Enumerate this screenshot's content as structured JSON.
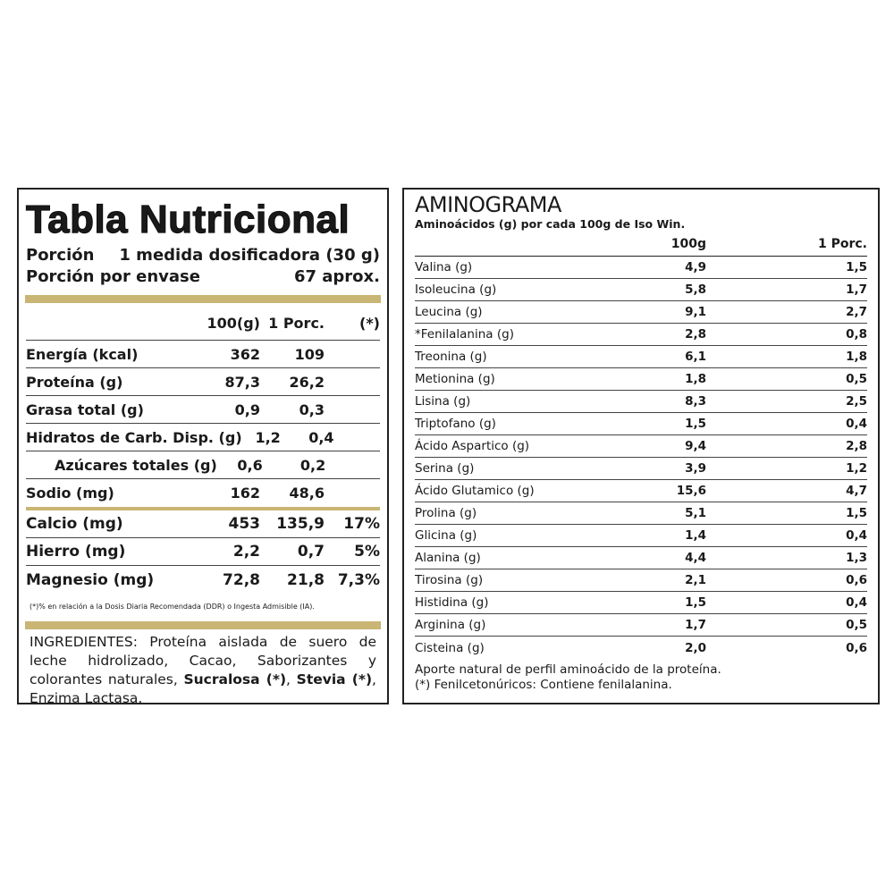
{
  "nutrition": {
    "title": "Tabla Nutricional",
    "portion_label": "Porción",
    "portion_value": "1 medida dosificadora (30 g)",
    "per_pack_label": "Porción por envase",
    "per_pack_value": "67 aprox.",
    "headers": [
      "100(g)",
      "1 Porc.",
      "(*)"
    ],
    "rows": [
      {
        "name": "Energía (kcal)",
        "a": "362",
        "b": "109",
        "c": ""
      },
      {
        "name": "Proteína (g)",
        "a": "87,3",
        "b": "26,2",
        "c": ""
      },
      {
        "name": "Grasa total (g)",
        "a": "0,9",
        "b": "0,3",
        "c": ""
      },
      {
        "name": "Hidratos de Carb. Disp. (g)",
        "a": "1,2",
        "b": "0,4",
        "c": ""
      },
      {
        "name": "Azúcares totales (g)",
        "a": "0,6",
        "b": "0,2",
        "c": ""
      },
      {
        "name": "Sodio (mg)",
        "a": "162",
        "b": "48,6",
        "c": ""
      },
      {
        "name": "Calcio (mg)",
        "a": "453",
        "b": "135,9",
        "c": "17%"
      },
      {
        "name": "Hierro (mg)",
        "a": "2,2",
        "b": "0,7",
        "c": "5%"
      },
      {
        "name": "Magnesio (mg)",
        "a": "72,8",
        "b": "21,8",
        "c": "7,3%"
      }
    ],
    "footnote": "(*)% en relación a la Dosis Diaria Recomendada (DDR) o Ingesta Admisible (IA).",
    "ingredients_pre": "INGREDIENTES: Proteína aislada de suero de leche hidrolizado, Cacao, Saborizantes y colorantes naturales, ",
    "ingredients_b1": "Sucralosa (*)",
    "ingredients_mid": ", ",
    "ingredients_b2": "Stevia (*)",
    "ingredients_post": ", Enzima Lactasa.",
    "accent_color": "#c9b574"
  },
  "aminogram": {
    "title": "AMINOGRAMA",
    "subtitle": "Aminoácidos (g) por cada 100g de Iso Win.",
    "headers": [
      "100g",
      "1 Porc."
    ],
    "rows": [
      [
        "Valina (g)",
        "4,9",
        "1,5"
      ],
      [
        "Isoleucina (g)",
        "5,8",
        "1,7"
      ],
      [
        "Leucina (g)",
        "9,1",
        "2,7"
      ],
      [
        "*Fenilalanina (g)",
        "2,8",
        "0,8"
      ],
      [
        "Treonina (g)",
        "6,1",
        "1,8"
      ],
      [
        "Metionina (g)",
        "1,8",
        "0,5"
      ],
      [
        "Lisina (g)",
        "8,3",
        "2,5"
      ],
      [
        "Triptofano (g)",
        "1,5",
        "0,4"
      ],
      [
        "Ácido Aspartico (g)",
        "9,4",
        "2,8"
      ],
      [
        "Serina (g)",
        "3,9",
        "1,2"
      ],
      [
        "Ácido Glutamico (g)",
        "15,6",
        "4,7"
      ],
      [
        "Prolina (g)",
        "5,1",
        "1,5"
      ],
      [
        "Glicina (g)",
        "1,4",
        "0,4"
      ],
      [
        "Alanina (g)",
        "4,4",
        "1,3"
      ],
      [
        "Tirosina (g)",
        "2,1",
        "0,6"
      ],
      [
        "Histidina (g)",
        "1,5",
        "0,4"
      ],
      [
        "Arginina (g)",
        "1,7",
        "0,5"
      ],
      [
        "Cisteina (g)",
        "2,0",
        "0,6"
      ]
    ],
    "note1": "Aporte natural de perfil aminoácido de la proteína.",
    "note2": "(*) Fenilcetonúricos: Contiene fenilalanina."
  }
}
